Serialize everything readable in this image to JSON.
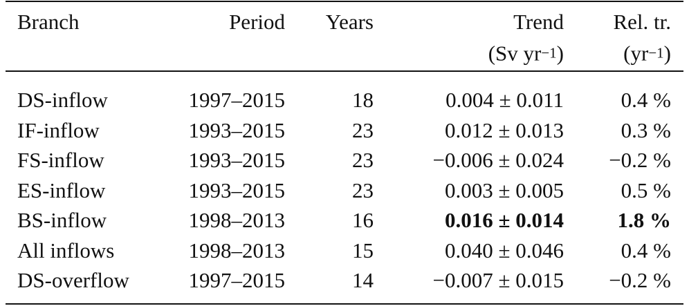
{
  "table": {
    "columns": [
      {
        "title": "Branch",
        "align": "left"
      },
      {
        "title": "Period",
        "align": "right"
      },
      {
        "title": "Years",
        "align": "right"
      },
      {
        "title": "Trend",
        "align": "right",
        "unit": {
          "before": "(Sv yr",
          "sup": "−1",
          "after": ")"
        }
      },
      {
        "title": "Rel. tr.",
        "align": "right",
        "unit": {
          "before": "(yr",
          "sup": "−1",
          "after": ")"
        }
      }
    ],
    "rows": [
      {
        "cells": [
          "DS-inflow",
          "1997–2015",
          "18",
          "0.004 ± 0.011",
          "0.4 %"
        ],
        "bold": [
          false,
          false,
          false,
          false,
          false
        ]
      },
      {
        "cells": [
          "IF-inflow",
          "1993–2015",
          "23",
          "0.012 ± 0.013",
          "0.3 %"
        ],
        "bold": [
          false,
          false,
          false,
          false,
          false
        ]
      },
      {
        "cells": [
          "FS-inflow",
          "1993–2015",
          "23",
          "−0.006 ± 0.024",
          "−0.2 %"
        ],
        "bold": [
          false,
          false,
          false,
          false,
          false
        ]
      },
      {
        "cells": [
          "ES-inflow",
          "1993–2015",
          "23",
          "0.003 ± 0.005",
          "0.5 %"
        ],
        "bold": [
          false,
          false,
          false,
          false,
          false
        ]
      },
      {
        "cells": [
          "BS-inflow",
          "1998–2013",
          "16",
          "0.016 ± 0.014",
          "1.8 %"
        ],
        "bold": [
          false,
          false,
          false,
          true,
          true
        ]
      },
      {
        "cells": [
          "All inflows",
          "1998–2013",
          "15",
          "0.040 ± 0.046",
          "0.4 %"
        ],
        "bold": [
          false,
          false,
          false,
          false,
          false
        ]
      },
      {
        "cells": [
          "DS-overflow",
          "1997–2015",
          "14",
          "−0.007 ± 0.015",
          "−0.2 %"
        ],
        "bold": [
          false,
          false,
          false,
          false,
          false
        ]
      }
    ]
  }
}
